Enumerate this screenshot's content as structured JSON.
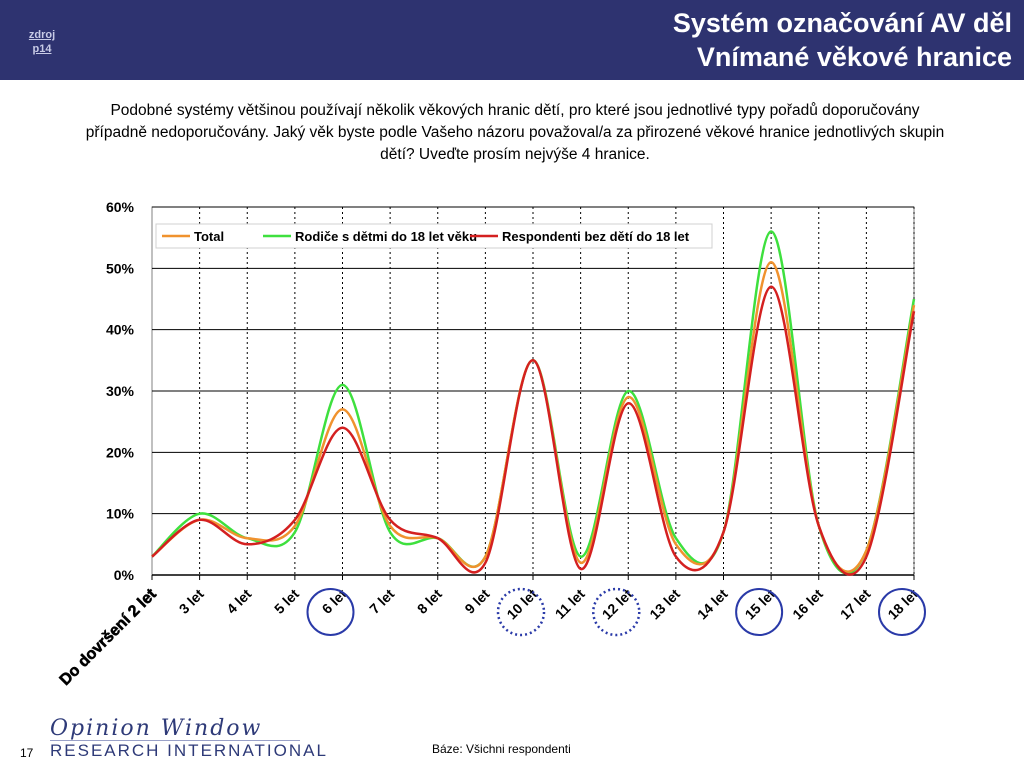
{
  "header": {
    "source_link_line1": "zdroj",
    "source_link_line2": "p14",
    "title_line1": "Systém označování AV děl",
    "title_line2": "Vnímané věkové hranice"
  },
  "question": "Podobné systémy většinou používají několik věkových hranic dětí, pro které jsou jednotlivé typy pořadů doporučovány případně nedoporučovány. Jaký věk byste podle Vašeho názoru považoval/a za přirozené věkové hranice jednotlivých skupin dětí? Uveďte prosím nejvýše 4 hranice.",
  "chart_data": {
    "type": "line",
    "categories": [
      "Do dovršení 2 let",
      "3 let",
      "4 let",
      "5 let",
      "6 let",
      "7 let",
      "8 let",
      "9 let",
      "10 let",
      "11 let",
      "12 let",
      "13 let",
      "14 let",
      "15 let",
      "16 let",
      "17 let",
      "18 let"
    ],
    "y_ticks": [
      "0%",
      "10%",
      "20%",
      "30%",
      "40%",
      "50%",
      "60%"
    ],
    "ylim": [
      0,
      60
    ],
    "grid": true,
    "legend_position": "top-left",
    "series": [
      {
        "name": "Total",
        "color": "#f0922e",
        "values": [
          3,
          9,
          6,
          8,
          27,
          8,
          6,
          3,
          35,
          2,
          29,
          5,
          7,
          51,
          8,
          4,
          44
        ]
      },
      {
        "name": "Rodiče s dětmi do 18 let věku",
        "color": "#3ee03e",
        "values": [
          3,
          10,
          6,
          7,
          31,
          7,
          6,
          3,
          35,
          3,
          30,
          6,
          7,
          56,
          8,
          4,
          45
        ]
      },
      {
        "name": "Respondenti bez dětí do 18 let",
        "color": "#d42020",
        "values": [
          3,
          9,
          5,
          9,
          24,
          9,
          6,
          2,
          35,
          1,
          28,
          3,
          7,
          47,
          8,
          3,
          43
        ]
      }
    ],
    "highlights": [
      {
        "category": "6 let",
        "style": "solid"
      },
      {
        "category": "10 let",
        "style": "dotted"
      },
      {
        "category": "12 let",
        "style": "dotted"
      },
      {
        "category": "15 let",
        "style": "solid"
      },
      {
        "category": "18 let",
        "style": "solid"
      }
    ]
  },
  "footer": {
    "logo_line1": "Opinion Window",
    "logo_line2": "RESEARCH INTERNATIONAL",
    "page_number": "17",
    "base": "Báze: Všichni respondenti"
  }
}
